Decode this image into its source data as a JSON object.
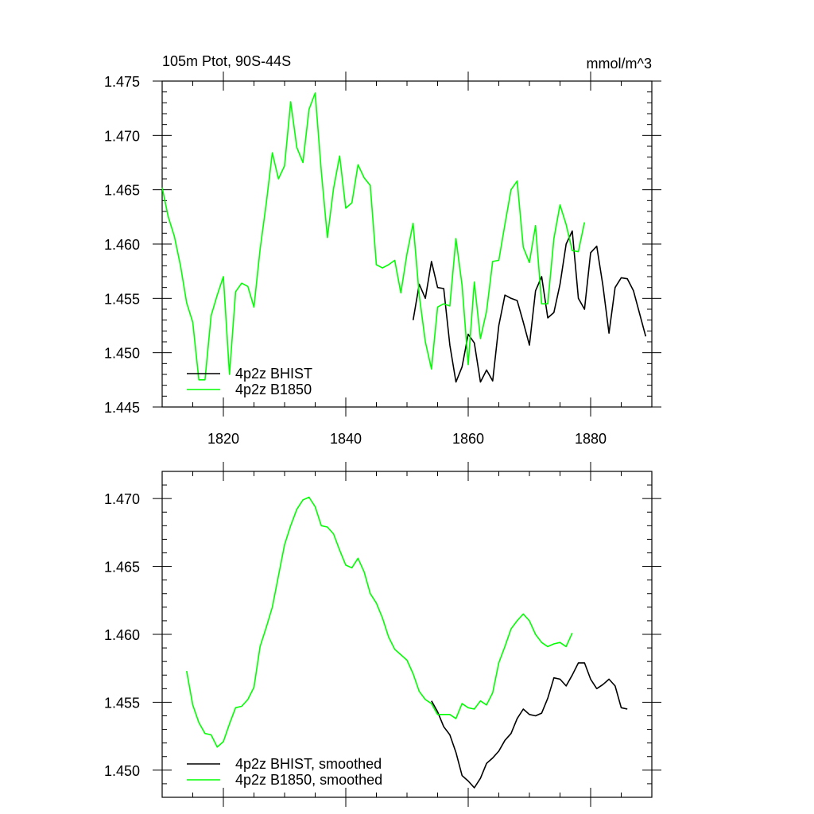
{
  "chart_data": [
    {
      "type": "line",
      "title_left": "105m Ptot, 90S-44S",
      "title_right": "mmol/m^3",
      "xlim": [
        1810,
        1890
      ],
      "ylim": [
        1.445,
        1.475
      ],
      "xticks": [
        1820,
        1840,
        1860,
        1880
      ],
      "xtick_labels": [
        "1820",
        "1840",
        "1860",
        "1880"
      ],
      "yticks": [
        1.445,
        1.45,
        1.455,
        1.46,
        1.465,
        1.47,
        1.475
      ],
      "ytick_labels": [
        "1.445",
        "1.450",
        "1.455",
        "1.460",
        "1.465",
        "1.470",
        "1.475"
      ],
      "legend_position": "bottom-left",
      "series": [
        {
          "name": "4p2z BHIST",
          "color": "#000000",
          "x": [
            1851,
            1852,
            1853,
            1854,
            1855,
            1856,
            1857,
            1858,
            1859,
            1860,
            1861,
            1862,
            1863,
            1864,
            1865,
            1866,
            1867,
            1868,
            1869,
            1870,
            1871,
            1872,
            1873,
            1874,
            1875,
            1876,
            1877,
            1878,
            1879,
            1880,
            1881,
            1882,
            1883,
            1884,
            1885,
            1886,
            1887,
            1888,
            1889
          ],
          "y": [
            1.453,
            1.4563,
            1.455,
            1.4584,
            1.456,
            1.4559,
            1.4507,
            1.4473,
            1.4487,
            1.4517,
            1.4509,
            1.4473,
            1.4484,
            1.4474,
            1.4525,
            1.4553,
            1.455,
            1.4548,
            1.4528,
            1.4507,
            1.4557,
            1.457,
            1.4532,
            1.4537,
            1.4563,
            1.46,
            1.4612,
            1.455,
            1.454,
            1.4592,
            1.4598,
            1.4562,
            1.4518,
            1.456,
            1.4569,
            1.4568,
            1.4557,
            1.4536,
            1.4515
          ]
        },
        {
          "name": "4p2z B1850",
          "color": "#00ff00",
          "x": [
            1810,
            1811,
            1812,
            1813,
            1814,
            1815,
            1816,
            1817,
            1818,
            1819,
            1820,
            1821,
            1822,
            1823,
            1824,
            1825,
            1826,
            1827,
            1828,
            1829,
            1830,
            1831,
            1832,
            1833,
            1834,
            1835,
            1836,
            1837,
            1838,
            1839,
            1840,
            1841,
            1842,
            1843,
            1844,
            1845,
            1846,
            1847,
            1848,
            1849,
            1850,
            1851,
            1852,
            1853,
            1854,
            1855,
            1856,
            1857,
            1858,
            1859,
            1860,
            1861,
            1862,
            1863,
            1864,
            1865,
            1866,
            1867,
            1868,
            1869,
            1870,
            1871,
            1872,
            1873,
            1874,
            1875,
            1876,
            1877,
            1878,
            1879
          ],
          "y": [
            1.4652,
            1.4625,
            1.4607,
            1.458,
            1.4546,
            1.4528,
            1.4475,
            1.4475,
            1.4534,
            1.4553,
            1.457,
            1.448,
            1.4556,
            1.4564,
            1.4561,
            1.4542,
            1.4595,
            1.4637,
            1.4684,
            1.466,
            1.4672,
            1.4731,
            1.4689,
            1.4675,
            1.4724,
            1.4739,
            1.4667,
            1.4606,
            1.4651,
            1.4681,
            1.4633,
            1.4638,
            1.4673,
            1.4661,
            1.4654,
            1.4581,
            1.4578,
            1.4581,
            1.4585,
            1.4555,
            1.4591,
            1.4619,
            1.4553,
            1.451,
            1.4485,
            1.4542,
            1.4545,
            1.4543,
            1.4605,
            1.4562,
            1.4489,
            1.4565,
            1.4513,
            1.4538,
            1.4584,
            1.4585,
            1.4618,
            1.465,
            1.4658,
            1.4597,
            1.4583,
            1.4617,
            1.4545,
            1.4545,
            1.4605,
            1.4636,
            1.4618,
            1.4594,
            1.4593,
            1.462
          ]
        }
      ]
    },
    {
      "type": "line",
      "xlim": [
        1810,
        1890
      ],
      "ylim": [
        1.448,
        1.472
      ],
      "xticks": [
        1820,
        1840,
        1860,
        1880
      ],
      "yticks": [
        1.45,
        1.455,
        1.46,
        1.465,
        1.47
      ],
      "ytick_labels": [
        "1.450",
        "1.455",
        "1.460",
        "1.465",
        "1.470"
      ],
      "legend_position": "bottom-left",
      "series": [
        {
          "name": "4p2z BHIST, smoothed",
          "color": "#000000",
          "x": [
            1854,
            1855,
            1856,
            1857,
            1858,
            1859,
            1860,
            1861,
            1862,
            1863,
            1864,
            1865,
            1866,
            1867,
            1868,
            1869,
            1870,
            1871,
            1872,
            1873,
            1874,
            1875,
            1876,
            1877,
            1878,
            1879,
            1880,
            1881,
            1882,
            1883,
            1884,
            1885,
            1886
          ],
          "y": [
            1.4551,
            1.4543,
            1.4532,
            1.4526,
            1.4513,
            1.4496,
            1.4492,
            1.4487,
            1.4494,
            1.4505,
            1.4509,
            1.4514,
            1.4522,
            1.4527,
            1.4538,
            1.4545,
            1.4541,
            1.454,
            1.4542,
            1.4553,
            1.4568,
            1.4567,
            1.4562,
            1.457,
            1.4579,
            1.4579,
            1.4567,
            1.456,
            1.4563,
            1.4567,
            1.4562,
            1.4546,
            1.4545
          ]
        },
        {
          "name": "4p2z B1850, smoothed",
          "color": "#00ff00",
          "x": [
            1814,
            1815,
            1816,
            1817,
            1818,
            1819,
            1820,
            1821,
            1822,
            1823,
            1824,
            1825,
            1826,
            1827,
            1828,
            1829,
            1830,
            1831,
            1832,
            1833,
            1834,
            1835,
            1836,
            1837,
            1838,
            1839,
            1840,
            1841,
            1842,
            1843,
            1844,
            1845,
            1846,
            1847,
            1848,
            1849,
            1850,
            1851,
            1852,
            1853,
            1854,
            1855,
            1856,
            1857,
            1858,
            1859,
            1860,
            1861,
            1862,
            1863,
            1864,
            1865,
            1866,
            1867,
            1868,
            1869,
            1870,
            1871,
            1872,
            1873,
            1874,
            1875,
            1876,
            1877
          ],
          "y": [
            1.4573,
            1.4548,
            1.4535,
            1.4527,
            1.4526,
            1.4517,
            1.4521,
            1.4534,
            1.4546,
            1.4547,
            1.4552,
            1.4561,
            1.4591,
            1.4605,
            1.462,
            1.4643,
            1.4666,
            1.468,
            1.4692,
            1.4699,
            1.4701,
            1.4694,
            1.468,
            1.4679,
            1.4674,
            1.4662,
            1.4651,
            1.4649,
            1.4656,
            1.4646,
            1.463,
            1.4623,
            1.4612,
            1.4598,
            1.4589,
            1.4585,
            1.4581,
            1.4571,
            1.4558,
            1.4552,
            1.4549,
            1.4541,
            1.4541,
            1.4541,
            1.4538,
            1.4549,
            1.4546,
            1.4545,
            1.4551,
            1.4548,
            1.4557,
            1.4579,
            1.4591,
            1.4604,
            1.461,
            1.4615,
            1.461,
            1.46,
            1.4594,
            1.4591,
            1.4593,
            1.4594,
            1.4591,
            1.4601
          ]
        }
      ]
    }
  ]
}
